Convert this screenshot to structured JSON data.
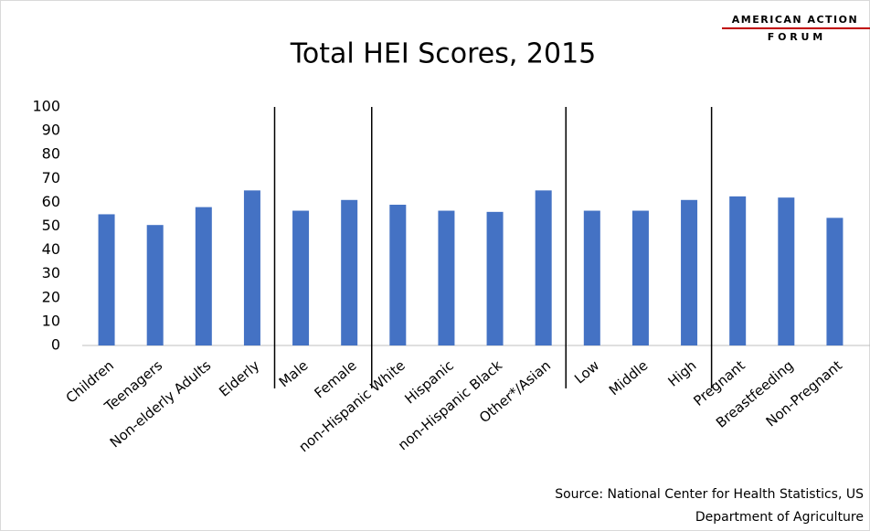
{
  "logo": {
    "line1": "AMERICAN ACTION",
    "line2": "F O R U M"
  },
  "chart_data": {
    "type": "bar",
    "title": "Total HEI Scores, 2015",
    "categories": [
      "Children",
      "Teenagers",
      "Non-elderly Adults",
      "Elderly",
      "Male",
      "Female",
      "non-Hispanic White",
      "Hispanic",
      "non-Hispanic Black",
      "Other*/Asian",
      "Low",
      "Middle",
      "High",
      "Pregnant",
      "Breastfeeding",
      "Non-Pregnant"
    ],
    "values": [
      55,
      50.5,
      58,
      65,
      56.5,
      61,
      59,
      56.5,
      56,
      65,
      56.5,
      56.5,
      61,
      62.5,
      62,
      53.5
    ],
    "color": "#4472c4",
    "ylim": [
      0,
      100
    ],
    "yticks": [
      0,
      10,
      20,
      30,
      40,
      50,
      60,
      70,
      80,
      90,
      100
    ],
    "grid": false,
    "source": [
      "Source: National Center for Health Statistics, US",
      "Department of Agriculture"
    ]
  }
}
